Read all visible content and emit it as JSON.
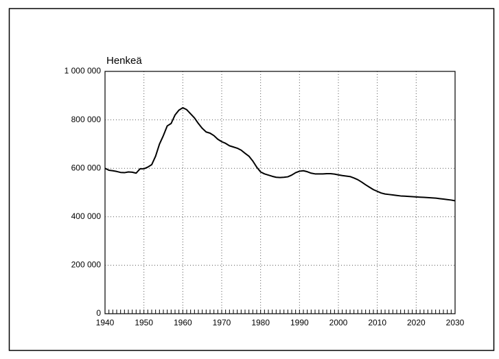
{
  "chart_data": {
    "type": "line",
    "y_label": "Henkeä",
    "x": [
      1940,
      1941,
      1942,
      1943,
      1944,
      1945,
      1946,
      1947,
      1948,
      1949,
      1950,
      1951,
      1952,
      1953,
      1954,
      1955,
      1956,
      1957,
      1958,
      1959,
      1960,
      1961,
      1962,
      1963,
      1964,
      1965,
      1966,
      1967,
      1968,
      1969,
      1970,
      1971,
      1972,
      1973,
      1974,
      1975,
      1976,
      1977,
      1978,
      1979,
      1980,
      1981,
      1982,
      1983,
      1984,
      1985,
      1986,
      1987,
      1988,
      1989,
      1990,
      1991,
      1992,
      1993,
      1994,
      1995,
      1996,
      1997,
      1998,
      1999,
      2000,
      2001,
      2002,
      2003,
      2004,
      2005,
      2006,
      2007,
      2008,
      2009,
      2010,
      2011,
      2012,
      2013,
      2014,
      2015,
      2016,
      2017,
      2018,
      2019,
      2020,
      2021,
      2022,
      2023,
      2024,
      2025,
      2026,
      2027,
      2028,
      2029,
      2030
    ],
    "values": [
      600000,
      592000,
      590000,
      587000,
      583000,
      582000,
      585000,
      584000,
      580000,
      598000,
      598000,
      605000,
      615000,
      650000,
      700000,
      735000,
      775000,
      785000,
      820000,
      840000,
      850000,
      842000,
      825000,
      808000,
      785000,
      765000,
      750000,
      745000,
      735000,
      720000,
      710000,
      703000,
      693000,
      688000,
      683000,
      675000,
      662000,
      650000,
      630000,
      605000,
      585000,
      577000,
      572000,
      567000,
      563000,
      562000,
      563000,
      565000,
      572000,
      582000,
      588000,
      590000,
      586000,
      580000,
      577000,
      577000,
      577000,
      578000,
      578000,
      576000,
      573000,
      570000,
      568000,
      566000,
      560000,
      553000,
      543000,
      532000,
      522000,
      512000,
      505000,
      498000,
      494000,
      492000,
      490000,
      488000,
      486000,
      485000,
      484000,
      483000,
      482000,
      481000,
      480000,
      479000,
      478000,
      477000,
      475000,
      473000,
      471000,
      469000,
      466000
    ],
    "color": "#000000",
    "xlim": [
      1940,
      2030
    ],
    "xticks": [
      1940,
      1950,
      1960,
      1970,
      1980,
      1990,
      2000,
      2010,
      2020,
      2030
    ],
    "ylim": [
      0,
      1000000
    ],
    "yticks": [
      0,
      {
        "value": 200000,
        "label": "200 000"
      },
      {
        "value": 400000,
        "label": "400 000"
      },
      {
        "value": 600000,
        "label": "600 000"
      },
      {
        "value": 800000,
        "label": "800 000"
      },
      {
        "value": 1000000,
        "label": "1 000 000"
      }
    ],
    "grid": true
  }
}
